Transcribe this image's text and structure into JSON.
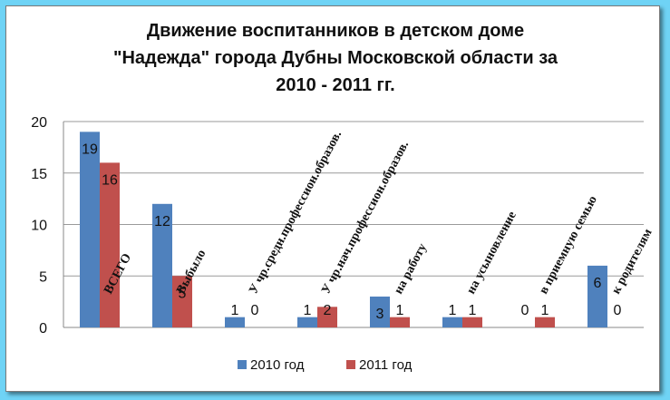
{
  "chart_data": {
    "type": "bar",
    "title_lines": [
      "Движение воспитанников в детском доме",
      "\"Надежда\" города Дубны Московской области за",
      "2010 - 2011 гг."
    ],
    "categories": [
      "ВСЕГО",
      "Выбыло",
      "У чр.средн.профессион.образов.",
      "У чр.нач.профессион.образов.",
      "на работу",
      "на усыновление",
      "в приемную семью",
      "к родителям"
    ],
    "series": [
      {
        "name": "2010 год",
        "values": [
          19,
          12,
          1,
          1,
          3,
          1,
          0,
          6
        ],
        "color": "#4f81bd"
      },
      {
        "name": "2011 год",
        "values": [
          16,
          5,
          0,
          2,
          1,
          1,
          1,
          0
        ],
        "color": "#c0504d"
      }
    ],
    "ylim": [
      0,
      20
    ],
    "yticks": [
      "0",
      "5",
      "10",
      "15",
      "20"
    ],
    "grid": true,
    "legend_position": "bottom"
  }
}
